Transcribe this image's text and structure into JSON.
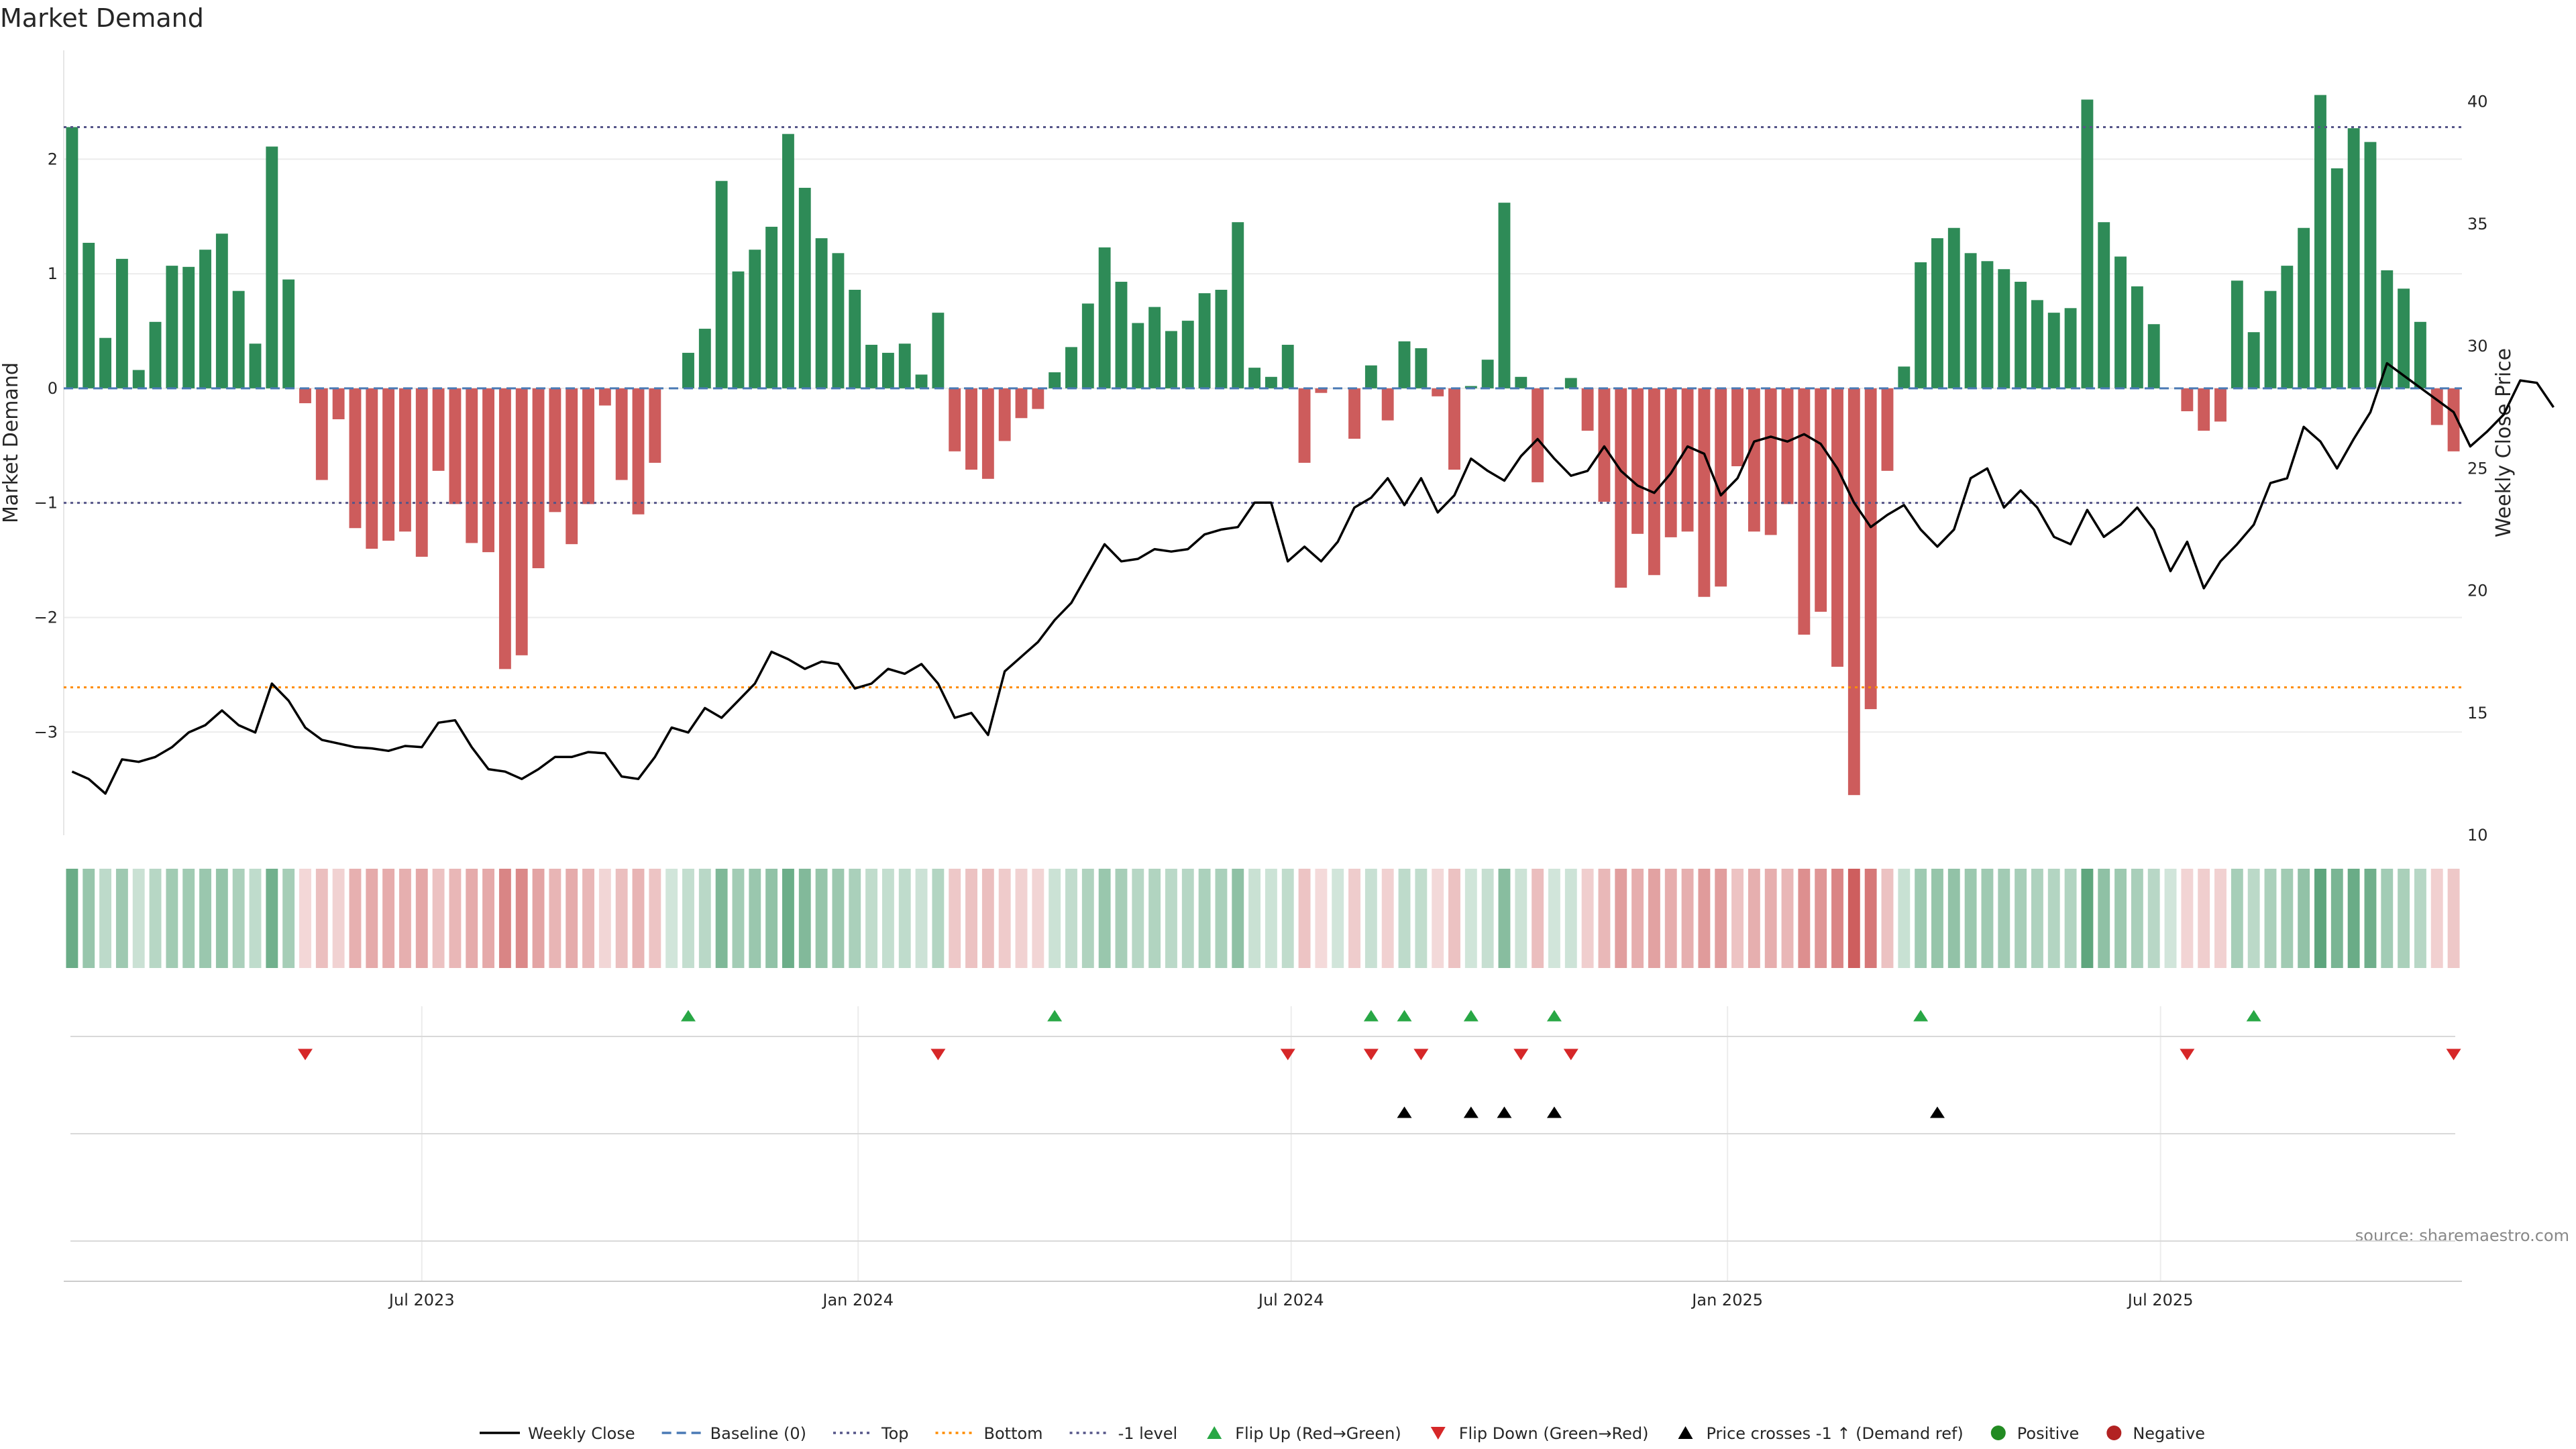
{
  "chart_data": {
    "type": "bar",
    "title": "Market Demand",
    "ylabel_left": "Market Demand",
    "ylabel_right": "Weekly Close Price",
    "y_left_range": [
      -3.9,
      2.95
    ],
    "y_left_ticks": [
      "−3",
      "−2",
      "−1",
      "0",
      "1",
      "2"
    ],
    "y_right_range": [
      10,
      42.1
    ],
    "y_right_ticks": [
      "10",
      "15",
      "20",
      "25",
      "30",
      "35",
      "40"
    ],
    "x_ticks": [
      "Jul 2023",
      "Jan 2024",
      "Jul 2024",
      "Jan 2025",
      "Jul 2025"
    ],
    "x_start": "2023-01-06",
    "week_step_days": 7,
    "x_tick_week_index": [
      21.5,
      47.7,
      73.7,
      99.9,
      125.9
    ],
    "top_level": 2.28,
    "bottom_level": -2.61,
    "minus_one_level": -1.0,
    "grid": true,
    "colors": {
      "positive": "#2e8b57",
      "negative": "#cd5c5c",
      "price": "#000000",
      "top_line": "#555588",
      "bottom_line": "#ff8c00",
      "baseline": "#4a7ab5",
      "flip_up": "#28a745",
      "flip_down": "#d62728",
      "cross": "#000000",
      "positive_dot": "#228b22",
      "negative_dot": "#b22222"
    },
    "demand": [
      2.28,
      1.27,
      0.44,
      1.13,
      0.16,
      0.58,
      1.07,
      1.06,
      1.21,
      1.35,
      0.85,
      0.39,
      2.11,
      0.95,
      -0.13,
      -0.8,
      -0.27,
      -1.22,
      -1.4,
      -1.33,
      -1.25,
      -1.47,
      -0.72,
      -1.01,
      -1.35,
      -1.43,
      -2.45,
      -2.33,
      -1.57,
      -1.08,
      -1.36,
      -1.01,
      -0.15,
      -0.8,
      -1.1,
      -0.65,
      0.0,
      0.31,
      0.52,
      1.81,
      1.02,
      1.21,
      1.41,
      2.22,
      1.75,
      1.31,
      1.18,
      0.86,
      0.38,
      0.31,
      0.39,
      0.12,
      0.66,
      -0.55,
      -0.71,
      -0.79,
      -0.46,
      -0.26,
      -0.18,
      0.14,
      0.36,
      0.74,
      1.23,
      0.93,
      0.57,
      0.71,
      0.5,
      0.59,
      0.83,
      0.86,
      1.45,
      0.18,
      0.1,
      0.38,
      -0.65,
      -0.04,
      0.0,
      -0.44,
      0.2,
      -0.28,
      0.41,
      0.35,
      -0.07,
      -0.71,
      0.02,
      0.25,
      1.62,
      0.1,
      -0.82,
      0.0,
      0.09,
      -0.37,
      -0.99,
      -1.74,
      -1.27,
      -1.63,
      -1.3,
      -1.25,
      -1.82,
      -1.73,
      -0.68,
      -1.25,
      -1.28,
      -1.01,
      -2.15,
      -1.95,
      -2.43,
      -3.55,
      -2.8,
      -0.72,
      0.19,
      1.1,
      1.31,
      1.4,
      1.18,
      1.11,
      1.04,
      0.93,
      0.77,
      0.66,
      0.7,
      2.52,
      1.45,
      1.15,
      0.89,
      0.56,
      0.0,
      -0.2,
      -0.37,
      -0.29,
      0.94,
      0.49,
      0.85,
      1.07,
      1.4,
      2.56,
      1.92,
      2.27,
      2.15,
      1.03,
      0.87,
      0.58,
      -0.32,
      -0.55
    ],
    "price": [
      12.6,
      12.3,
      11.7,
      13.1,
      13.0,
      13.2,
      13.6,
      14.2,
      14.5,
      15.1,
      14.5,
      14.2,
      16.2,
      15.5,
      14.4,
      13.9,
      13.75,
      13.6,
      13.55,
      13.45,
      13.65,
      13.6,
      14.6,
      14.7,
      13.6,
      12.7,
      12.6,
      12.3,
      12.7,
      13.2,
      13.2,
      13.4,
      13.35,
      12.4,
      12.3,
      13.2,
      14.4,
      14.2,
      15.2,
      14.8,
      15.5,
      16.2,
      17.5,
      17.2,
      16.8,
      17.1,
      17.0,
      16.0,
      16.2,
      16.8,
      16.6,
      17.0,
      16.2,
      14.8,
      15.0,
      14.1,
      16.7,
      17.3,
      17.9,
      18.8,
      19.5,
      20.7,
      21.9,
      21.2,
      21.3,
      21.7,
      21.6,
      21.7,
      22.3,
      22.5,
      22.6,
      23.6,
      23.6,
      21.2,
      21.8,
      21.2,
      22.0,
      23.4,
      23.8,
      24.6,
      23.5,
      24.6,
      23.2,
      23.9,
      25.4,
      24.9,
      24.5,
      25.5,
      26.2,
      25.4,
      24.7,
      24.9,
      25.9,
      24.9,
      24.3,
      24.0,
      24.8,
      25.9,
      25.6,
      23.9,
      24.6,
      26.1,
      26.3,
      26.1,
      26.4,
      26.0,
      25.0,
      23.6,
      22.6,
      23.1,
      23.5,
      22.5,
      21.8,
      22.5,
      24.6,
      25.0,
      23.4,
      24.1,
      23.4,
      22.2,
      21.9,
      23.3,
      22.2,
      22.7,
      23.4,
      22.5,
      20.8,
      22.0,
      20.1,
      21.2,
      21.9,
      22.7,
      24.4,
      24.6,
      26.7,
      26.1,
      25.0,
      26.2,
      27.3,
      29.3,
      28.8,
      28.3,
      27.8,
      27.3,
      25.9,
      26.5,
      27.2,
      28.6,
      28.5,
      27.5
    ],
    "flip_up_weeks": [
      37,
      59,
      78,
      80,
      84,
      89,
      111,
      131
    ],
    "flip_down_weeks": [
      14,
      52,
      73,
      78,
      81,
      87,
      90,
      127,
      143
    ],
    "price_cross_weeks": [
      80,
      84,
      86,
      89,
      112
    ],
    "legend": [
      {
        "label": "Weekly Close",
        "kind": "line-solid",
        "color": "#000000"
      },
      {
        "label": "Baseline (0)",
        "kind": "line-dash",
        "color": "#4a7ab5"
      },
      {
        "label": "Top",
        "kind": "line-dot",
        "color": "#555588"
      },
      {
        "label": "Bottom",
        "kind": "line-dot",
        "color": "#ff8c00"
      },
      {
        "label": "-1 level",
        "kind": "line-dot",
        "color": "#555588"
      },
      {
        "label": "Flip Up (Red→Green)",
        "kind": "tri-up",
        "color": "#28a745"
      },
      {
        "label": "Flip Down (Green→Red)",
        "kind": "tri-down",
        "color": "#d62728"
      },
      {
        "label": "Price crosses -1 ↑ (Demand ref)",
        "kind": "tri-up",
        "color": "#000000"
      },
      {
        "label": "Positive",
        "kind": "dot",
        "color": "#228b22"
      },
      {
        "label": "Negative",
        "kind": "dot",
        "color": "#b22222"
      }
    ],
    "source": "source: sharemaestro.com"
  }
}
